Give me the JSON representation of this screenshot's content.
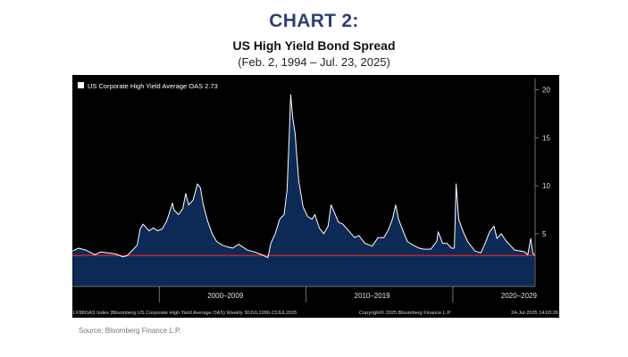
{
  "header": {
    "chart_number": "CHART 2:",
    "title": "US High Yield Bond Spread",
    "date_range": "(Feb. 2, 1994 – Jul. 23, 2025)"
  },
  "source": "Source: Bloomberg Finance L.P.",
  "colors": {
    "background": "#000000",
    "line": "#ffffff",
    "area": "#0c2a55",
    "reference_line": "#e3202a",
    "heading": "#2f3e73"
  },
  "chart_data": {
    "type": "area",
    "legend": "US Corporate High Yield Average OAS  2.73",
    "legend_placement": "top-left",
    "footer_left": "LF98OAS Index (Bloomberg US Corporate High Yield Average OAS)  Weekly 30JUL1990-23JUL2025",
    "footer_mid": "Copyright© 2025 Bloomberg Finance L.P.",
    "footer_right": "24-Jul-2025 14:03:26",
    "x_labels": [
      "2000–2009",
      "2010–2019",
      "2020–2029"
    ],
    "x_label_positions": [
      2004.5,
      2014.5,
      2024.5
    ],
    "decade_dividers": [
      2000.0,
      2010.0,
      2020.0
    ],
    "y_ticks": [
      5,
      10,
      15,
      20
    ],
    "ylim": [
      -0.5,
      20.8
    ],
    "xlim": [
      1994.08,
      2025.6
    ],
    "y_axis_side": "right",
    "grid": false,
    "reference_value": 2.73,
    "x": [
      1994.1,
      1994.5,
      1995.0,
      1995.6,
      1996.0,
      1996.5,
      1997.0,
      1997.5,
      1997.8,
      1998.0,
      1998.5,
      1998.7,
      1998.9,
      1999.3,
      1999.6,
      1999.9,
      2000.2,
      2000.5,
      2000.9,
      2001.0,
      2001.3,
      2001.6,
      2001.8,
      2002.0,
      2002.3,
      2002.6,
      2002.8,
      2003.0,
      2003.3,
      2003.6,
      2003.9,
      2004.3,
      2004.7,
      2005.0,
      2005.4,
      2005.7,
      2006.0,
      2006.5,
      2007.0,
      2007.4,
      2007.6,
      2007.9,
      2008.2,
      2008.5,
      2008.7,
      2008.85,
      2008.95,
      2009.1,
      2009.25,
      2009.5,
      2009.8,
      2010.1,
      2010.4,
      2010.6,
      2010.9,
      2011.2,
      2011.5,
      2011.7,
      2011.9,
      2012.2,
      2012.5,
      2012.9,
      2013.3,
      2013.6,
      2014.0,
      2014.5,
      2014.9,
      2015.3,
      2015.6,
      2015.9,
      2016.1,
      2016.3,
      2016.6,
      2016.9,
      2017.3,
      2017.7,
      2018.0,
      2018.5,
      2018.9,
      2019.0,
      2019.3,
      2019.6,
      2019.9,
      2020.1,
      2020.22,
      2020.4,
      2020.7,
      2021.0,
      2021.5,
      2021.9,
      2022.2,
      2022.5,
      2022.8,
      2023.0,
      2023.3,
      2023.6,
      2023.9,
      2024.2,
      2024.6,
      2024.9,
      2025.1,
      2025.3,
      2025.45,
      2025.56
    ],
    "y": [
      3.2,
      3.5,
      3.3,
      2.8,
      3.1,
      3.0,
      2.9,
      2.6,
      2.7,
      3.0,
      3.8,
      5.5,
      6.0,
      5.3,
      5.6,
      5.3,
      5.5,
      6.3,
      8.2,
      7.5,
      7.0,
      7.6,
      9.2,
      8.0,
      8.5,
      10.2,
      9.8,
      8.0,
      6.3,
      5.0,
      4.2,
      3.8,
      3.6,
      3.5,
      3.9,
      3.6,
      3.3,
      3.1,
      2.8,
      2.5,
      4.0,
      5.0,
      6.5,
      7.0,
      9.5,
      15.0,
      19.5,
      17.0,
      15.5,
      10.5,
      7.8,
      6.8,
      6.5,
      7.0,
      5.6,
      5.0,
      5.8,
      8.0,
      7.3,
      6.2,
      6.0,
      5.3,
      4.6,
      4.8,
      4.0,
      3.7,
      4.6,
      4.6,
      5.4,
      6.6,
      8.0,
      6.5,
      5.3,
      4.2,
      3.8,
      3.5,
      3.4,
      3.4,
      4.2,
      5.2,
      4.0,
      4.0,
      3.5,
      3.5,
      10.2,
      6.5,
      5.2,
      4.2,
      3.2,
      3.0,
      4.0,
      5.2,
      5.8,
      4.5,
      5.0,
      4.3,
      3.8,
      3.3,
      3.2,
      3.1,
      2.8,
      4.5,
      3.0,
      2.73
    ]
  }
}
